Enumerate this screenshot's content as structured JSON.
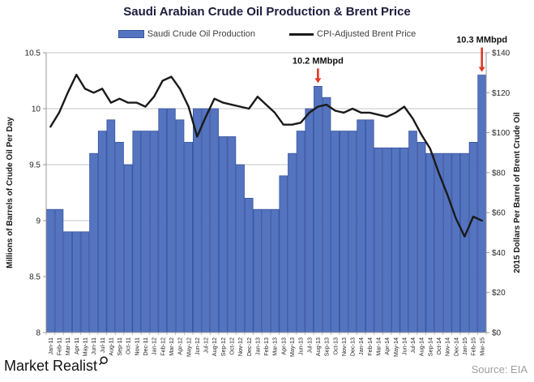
{
  "title": "Saudi Arabian Crude Oil Production & Brent Price",
  "colors": {
    "title_text": "#1c1c3c",
    "bar_fill": "#5474bf",
    "bar_border": "#3a54a0",
    "line_color": "#1a1a1a",
    "annotation_arrow": "#dd3926",
    "grid": "#c6c6c6",
    "axis": "#9a9a9a",
    "tick_text": "#262626"
  },
  "legend": [
    {
      "label": "Saudi Crude Oil Production",
      "type": "bar",
      "color": "#5474bf"
    },
    {
      "label": "CPI-Adjusted Brent Price",
      "type": "line",
      "color": "#1a1a1a"
    }
  ],
  "footer": {
    "brand": "Market Realist",
    "source": "Source: EIA"
  },
  "chart_data": {
    "type": "bar+line combo",
    "title": "Saudi Arabian Crude Oil Production & Brent Price",
    "grid": true,
    "legend_position": "top",
    "categories": [
      "Jan-11",
      "Feb-11",
      "Mar-11",
      "Apr-11",
      "May-11",
      "Jun-11",
      "Jul-11",
      "Aug-11",
      "Sep-11",
      "Oct-11",
      "Nov-11",
      "Dec-11",
      "Jan-12",
      "Feb-12",
      "Mar-12",
      "Apr-12",
      "May-12",
      "Jun-12",
      "Jul-12",
      "Aug-12",
      "Sep-12",
      "Oct-12",
      "Nov-12",
      "Dec-12",
      "Jan-13",
      "Feb-13",
      "Mar-13",
      "Apr-13",
      "May-13",
      "Jun-13",
      "Jul-13",
      "Aug-13",
      "Sep-13",
      "Oct-13",
      "Nov-13",
      "Dec-13",
      "Jan-14",
      "Feb-14",
      "Mar-14",
      "Apr-14",
      "May-14",
      "Jun-14",
      "Jul-14",
      "Aug-14",
      "Sep-14",
      "Oct-14",
      "Nov-14",
      "Dec-14",
      "Jan-15",
      "Feb-15",
      "Mar-15"
    ],
    "series": [
      {
        "name": "Saudi Crude Oil Production",
        "type": "bar",
        "axis": "left",
        "unit": "MMbpd",
        "color": "#5474bf",
        "border_color": "#3a54a0",
        "values": [
          9.1,
          9.1,
          8.9,
          8.9,
          8.9,
          9.6,
          9.8,
          9.9,
          9.7,
          9.5,
          9.8,
          9.8,
          9.8,
          10.0,
          10.0,
          9.9,
          9.7,
          10.0,
          10.0,
          10.0,
          9.75,
          9.75,
          9.5,
          9.2,
          9.1,
          9.1,
          9.1,
          9.4,
          9.6,
          9.8,
          10.0,
          10.2,
          10.1,
          9.8,
          9.8,
          9.8,
          9.9,
          9.9,
          9.65,
          9.65,
          9.65,
          9.65,
          9.8,
          9.7,
          9.6,
          9.6,
          9.6,
          9.6,
          9.6,
          9.7,
          10.3
        ]
      },
      {
        "name": "CPI-Adjusted Brent Price",
        "type": "line",
        "axis": "right",
        "unit": "2015 USD per barrel",
        "color": "#1a1a1a",
        "values": [
          103,
          110,
          120,
          129,
          122,
          120,
          122,
          115,
          117,
          115,
          115,
          113,
          118,
          126,
          128,
          122,
          113,
          98,
          108,
          117,
          115,
          114,
          113,
          112,
          118,
          114,
          110,
          104,
          104,
          105,
          110,
          113,
          114,
          111,
          110,
          112,
          110,
          110,
          109,
          108,
          110,
          113,
          107,
          99,
          92,
          80,
          69,
          57,
          48,
          58,
          56
        ]
      }
    ],
    "left_axis": {
      "title": "Millions of Barrels of Crude Oil Per Day",
      "min": 8,
      "max": 10.5,
      "tick_step": 0.5,
      "tick_labels": [
        "8",
        "8.5",
        "9",
        "9.5",
        "10",
        "10.5"
      ]
    },
    "right_axis": {
      "title": "2015 Dollars Per Barrel of Brent Crude Oil",
      "min": 0,
      "max": 140,
      "tick_step": 20,
      "tick_labels": [
        "$0",
        "$20",
        "$40",
        "$60",
        "$80",
        "$100",
        "$120",
        "$140"
      ]
    },
    "annotations": [
      {
        "label": "10.2 MMbpd",
        "target_category": "Aug-13",
        "value": 10.2
      },
      {
        "label": "10.3 MMbpd",
        "target_category": "Mar-15",
        "value": 10.3
      }
    ]
  }
}
